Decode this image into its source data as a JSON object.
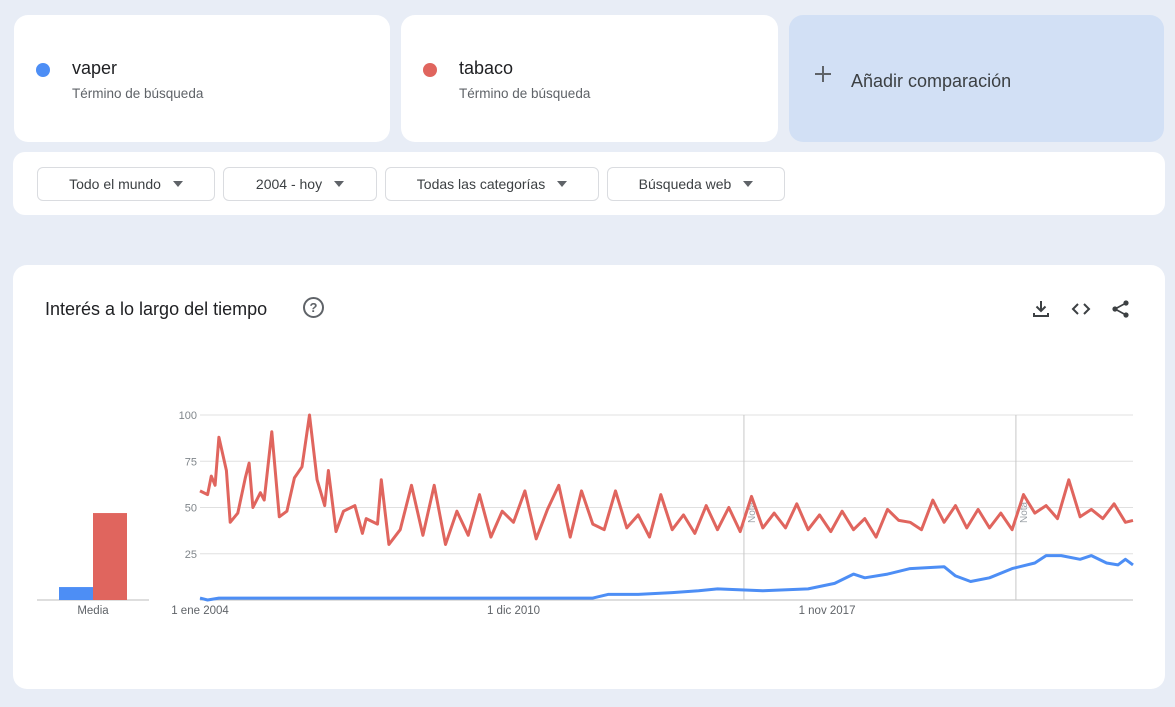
{
  "terms": [
    {
      "name": "vaper",
      "subtitle": "Término de búsqueda",
      "color": "#4d8ef5"
    },
    {
      "name": "tabaco",
      "subtitle": "Término de búsqueda",
      "color": "#e0655e"
    }
  ],
  "add_comparison": {
    "label": "Añadir comparación",
    "icon": "plus-icon"
  },
  "filters": [
    {
      "label": "Todo el mundo"
    },
    {
      "label": "2004 - hoy"
    },
    {
      "label": "Todas las categorías"
    },
    {
      "label": "Búsqueda web"
    }
  ],
  "chart_section": {
    "title": "Interés a lo largo del tiempo",
    "icons": [
      "help-icon",
      "download-icon",
      "embed-icon",
      "share-icon"
    ]
  },
  "chart_data": {
    "type": "line",
    "x_ticks": [
      "1 ene 2004",
      "1 dic 2010",
      "1 nov 2017"
    ],
    "y_ticks": [
      "100",
      "75",
      "50",
      "25"
    ],
    "ylim": [
      0,
      100
    ],
    "xlim": [
      "2004-01",
      "2024-08"
    ],
    "grid": true,
    "notes": [
      {
        "label": "Nota",
        "date": "2016-01"
      },
      {
        "label": "Nota",
        "date": "2022-01"
      }
    ],
    "series": [
      {
        "name": "vaper",
        "color": "#4d8ef5",
        "keypoints": [
          [
            "2004-01",
            1
          ],
          [
            "2004-03",
            0
          ],
          [
            "2004-06",
            1
          ],
          [
            "2010-12",
            1
          ],
          [
            "2012-09",
            1
          ],
          [
            "2013-01",
            3
          ],
          [
            "2013-09",
            3
          ],
          [
            "2014-06",
            4
          ],
          [
            "2015-01",
            5
          ],
          [
            "2015-06",
            6
          ],
          [
            "2016-06",
            5
          ],
          [
            "2017-06",
            6
          ],
          [
            "2018-01",
            9
          ],
          [
            "2018-06",
            14
          ],
          [
            "2018-09",
            12
          ],
          [
            "2019-03",
            14
          ],
          [
            "2019-09",
            17
          ],
          [
            "2020-06",
            18
          ],
          [
            "2020-09",
            13
          ],
          [
            "2021-01",
            10
          ],
          [
            "2021-06",
            12
          ],
          [
            "2021-12",
            17
          ],
          [
            "2022-06",
            20
          ],
          [
            "2022-09",
            24
          ],
          [
            "2023-01",
            24
          ],
          [
            "2023-06",
            22
          ],
          [
            "2023-09",
            24
          ],
          [
            "2024-01",
            20
          ],
          [
            "2024-04",
            19
          ],
          [
            "2024-06",
            22
          ],
          [
            "2024-08",
            19
          ]
        ]
      },
      {
        "name": "tabaco",
        "color": "#e0655e",
        "keypoints": [
          [
            "2004-01",
            59
          ],
          [
            "2004-03",
            57
          ],
          [
            "2004-04",
            67
          ],
          [
            "2004-05",
            62
          ],
          [
            "2004-06",
            88
          ],
          [
            "2004-08",
            70
          ],
          [
            "2004-09",
            42
          ],
          [
            "2004-11",
            47
          ],
          [
            "2005-01",
            66
          ],
          [
            "2005-02",
            74
          ],
          [
            "2005-03",
            50
          ],
          [
            "2005-05",
            58
          ],
          [
            "2005-06",
            54
          ],
          [
            "2005-08",
            91
          ],
          [
            "2005-10",
            45
          ],
          [
            "2005-12",
            48
          ],
          [
            "2006-02",
            66
          ],
          [
            "2006-04",
            72
          ],
          [
            "2006-06",
            100
          ],
          [
            "2006-08",
            65
          ],
          [
            "2006-10",
            51
          ],
          [
            "2006-11",
            70
          ],
          [
            "2007-01",
            37
          ],
          [
            "2007-03",
            48
          ],
          [
            "2007-06",
            51
          ],
          [
            "2007-08",
            36
          ],
          [
            "2007-09",
            44
          ],
          [
            "2007-12",
            41
          ],
          [
            "2008-01",
            65
          ],
          [
            "2008-03",
            30
          ],
          [
            "2008-06",
            38
          ],
          [
            "2008-09",
            62
          ],
          [
            "2008-12",
            35
          ],
          [
            "2009-03",
            62
          ],
          [
            "2009-06",
            30
          ],
          [
            "2009-09",
            48
          ],
          [
            "2009-12",
            35
          ],
          [
            "2010-03",
            57
          ],
          [
            "2010-06",
            34
          ],
          [
            "2010-09",
            48
          ],
          [
            "2010-12",
            42
          ],
          [
            "2011-03",
            59
          ],
          [
            "2011-06",
            33
          ],
          [
            "2011-09",
            49
          ],
          [
            "2011-12",
            62
          ],
          [
            "2012-03",
            34
          ],
          [
            "2012-06",
            59
          ],
          [
            "2012-09",
            41
          ],
          [
            "2012-12",
            38
          ],
          [
            "2013-03",
            59
          ],
          [
            "2013-06",
            39
          ],
          [
            "2013-09",
            46
          ],
          [
            "2013-12",
            34
          ],
          [
            "2014-03",
            57
          ],
          [
            "2014-06",
            38
          ],
          [
            "2014-09",
            46
          ],
          [
            "2014-12",
            36
          ],
          [
            "2015-03",
            51
          ],
          [
            "2015-06",
            38
          ],
          [
            "2015-09",
            50
          ],
          [
            "2015-12",
            37
          ],
          [
            "2016-03",
            56
          ],
          [
            "2016-06",
            39
          ],
          [
            "2016-09",
            47
          ],
          [
            "2016-12",
            39
          ],
          [
            "2017-03",
            52
          ],
          [
            "2017-06",
            38
          ],
          [
            "2017-09",
            46
          ],
          [
            "2017-12",
            37
          ],
          [
            "2018-03",
            48
          ],
          [
            "2018-06",
            38
          ],
          [
            "2018-09",
            44
          ],
          [
            "2018-12",
            34
          ],
          [
            "2019-03",
            49
          ],
          [
            "2019-06",
            43
          ],
          [
            "2019-09",
            42
          ],
          [
            "2019-12",
            38
          ],
          [
            "2020-03",
            54
          ],
          [
            "2020-06",
            42
          ],
          [
            "2020-09",
            51
          ],
          [
            "2020-12",
            39
          ],
          [
            "2021-03",
            49
          ],
          [
            "2021-06",
            39
          ],
          [
            "2021-09",
            47
          ],
          [
            "2021-12",
            38
          ],
          [
            "2022-03",
            57
          ],
          [
            "2022-06",
            47
          ],
          [
            "2022-09",
            51
          ],
          [
            "2022-12",
            44
          ],
          [
            "2023-03",
            65
          ],
          [
            "2023-06",
            45
          ],
          [
            "2023-09",
            49
          ],
          [
            "2023-12",
            44
          ],
          [
            "2024-03",
            52
          ],
          [
            "2024-06",
            42
          ],
          [
            "2024-08",
            43
          ]
        ]
      }
    ],
    "average": {
      "label": "Media",
      "values": [
        {
          "name": "vaper",
          "value": 7
        },
        {
          "name": "tabaco",
          "value": 47
        }
      ]
    }
  }
}
